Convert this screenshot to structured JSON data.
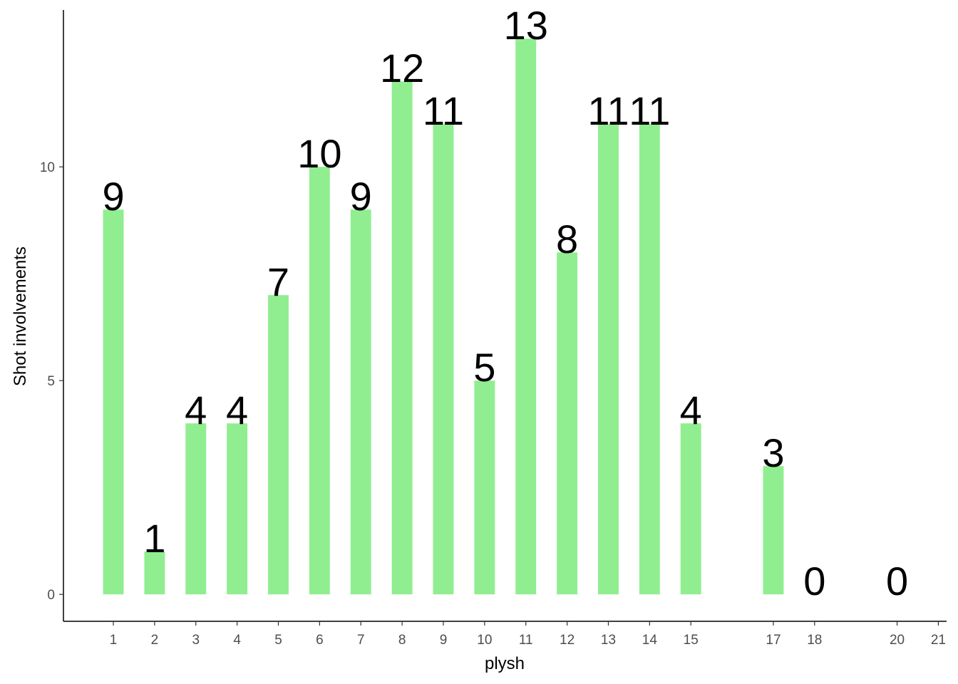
{
  "chart_data": {
    "type": "bar",
    "x": [
      1,
      2,
      3,
      4,
      5,
      6,
      7,
      8,
      9,
      10,
      11,
      12,
      13,
      14,
      15,
      17,
      18,
      20
    ],
    "values": [
      9,
      1,
      4,
      4,
      7,
      10,
      9,
      12,
      11,
      5,
      13,
      8,
      11,
      11,
      4,
      3,
      0,
      0
    ],
    "color": "#90ee90",
    "x_label": "plysh",
    "y_label": "Shot involvements",
    "xlim": [
      -0.21,
      21.2
    ],
    "xticks": [
      1,
      2,
      3,
      4,
      5,
      6,
      7,
      8,
      9,
      10,
      11,
      12,
      13,
      14,
      15,
      17,
      18,
      20,
      21
    ],
    "ylim": [
      -0.63,
      13.67
    ],
    "yticks": [
      0,
      5,
      10
    ],
    "grid": false
  }
}
